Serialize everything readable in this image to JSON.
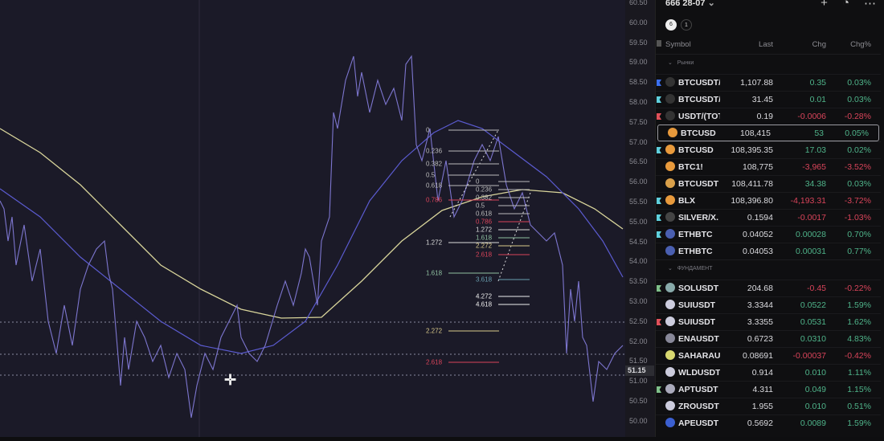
{
  "chart": {
    "price_axis": [
      "60.50",
      "60.00",
      "59.50",
      "59.00",
      "58.50",
      "58.00",
      "57.50",
      "57.00",
      "56.50",
      "56.00",
      "55.50",
      "55.00",
      "54.50",
      "54.00",
      "53.50",
      "53.00",
      "52.50",
      "52.00",
      "51.50",
      "51.00",
      "50.50",
      "50.00"
    ],
    "current_price": "51.15",
    "fib_labels_left": [
      "0",
      "0.236",
      "0.382",
      "0.5",
      "0.618",
      "0.786",
      "1.272",
      "1.618",
      "2.272",
      "2.618"
    ],
    "fib_labels_right": [
      "0",
      "0.236",
      "0.382",
      "0.5",
      "0.618",
      "0.786",
      "1.272",
      "1.618",
      "2.272",
      "2.618",
      "3.618",
      "4.272",
      "4.618"
    ],
    "colors": {
      "price": "#7d76cf",
      "ma_fast": "#5b5bd0",
      "ma_slow": "#d9d59b",
      "background": "#1b1a28"
    }
  },
  "watchlist": {
    "title": "666 28-07",
    "tabs": [
      "6",
      "1"
    ],
    "columns": {
      "symbol": "Symbol",
      "last": "Last",
      "chg": "Chg",
      "pct": "Chg%"
    },
    "sections": [
      {
        "name": "Рынки",
        "rows": [
          {
            "symbol": "BTCUSDT/I",
            "last": "1,107.88",
            "chg": "0.35",
            "pct": "0.03%",
            "dir": "pos",
            "flag": "#3b6ff0",
            "coin": "#333"
          },
          {
            "symbol": "BTCUSDT/:",
            "last": "31.45",
            "chg": "0.01",
            "pct": "0.03%",
            "dir": "pos",
            "flag": "#5fd0dd",
            "coin": "#333"
          },
          {
            "symbol": "USDT/(TOT",
            "last": "0.19",
            "chg": "-0.0006",
            "pct": "-0.28%",
            "dir": "neg",
            "flag": "#e0505a",
            "coin": "#333"
          },
          {
            "symbol": "BTCUSD",
            "last": "108,415",
            "chg": "53",
            "pct": "0.05%",
            "dir": "pos",
            "flag": "",
            "coin": "#e89a3c",
            "selected": true
          },
          {
            "symbol": "BTCUSD",
            "last": "108,395.35",
            "chg": "17.03",
            "pct": "0.02%",
            "dir": "pos",
            "flag": "#5fd0dd",
            "coin": "#e89a3c"
          },
          {
            "symbol": "BTC1!",
            "last": "108,775",
            "chg": "-3,965",
            "pct": "-3.52%",
            "dir": "neg",
            "flag": "",
            "coin": "#e89a3c"
          },
          {
            "symbol": "BTCUSDT",
            "last": "108,411.78",
            "chg": "34.38",
            "pct": "0.03%",
            "dir": "pos",
            "flag": "",
            "coin": "#d9a04a"
          },
          {
            "symbol": "BLX",
            "last": "108,396.80",
            "chg": "-4,193.31",
            "pct": "-3.72%",
            "dir": "neg",
            "flag": "#5fd0dd",
            "coin": "#e89a3c"
          },
          {
            "symbol": "SILVER/X.",
            "last": "0.1594",
            "chg": "-0.0017",
            "pct": "-1.03%",
            "dir": "neg",
            "flag": "#5fd0dd",
            "coin": "#444"
          },
          {
            "symbol": "ETHBTC",
            "last": "0.04052",
            "chg": "0.00028",
            "pct": "0.70%",
            "dir": "pos",
            "flag": "#5fd0dd",
            "coin": "#4a5fb0"
          },
          {
            "symbol": "ETHBTC",
            "last": "0.04053",
            "chg": "0.00031",
            "pct": "0.77%",
            "dir": "pos",
            "flag": "",
            "coin": "#4a5fb0"
          }
        ]
      },
      {
        "name": "ФУНДАМЕНТ",
        "rows": [
          {
            "symbol": "SOLUSDT",
            "last": "204.68",
            "chg": "-0.45",
            "pct": "-0.22%",
            "dir": "neg",
            "flag": "#7fc08a",
            "coin": "#8aa"
          },
          {
            "symbol": "SUIUSDT",
            "last": "3.3344",
            "chg": "0.0522",
            "pct": "1.59%",
            "dir": "pos",
            "flag": "",
            "coin": "#ccd"
          },
          {
            "symbol": "SUIUSDT",
            "last": "3.3355",
            "chg": "0.0531",
            "pct": "1.62%",
            "dir": "pos",
            "flag": "#e0505a",
            "coin": "#ccd"
          },
          {
            "symbol": "ENAUSDT",
            "last": "0.6723",
            "chg": "0.0310",
            "pct": "4.83%",
            "dir": "pos",
            "flag": "",
            "coin": "#889"
          },
          {
            "symbol": "SAHARAUS",
            "last": "0.08691",
            "chg": "-0.00037",
            "pct": "-0.42%",
            "dir": "neg",
            "flag": "",
            "coin": "#d8d870"
          },
          {
            "symbol": "WLDUSDT",
            "last": "0.914",
            "chg": "0.010",
            "pct": "1.11%",
            "dir": "pos",
            "flag": "",
            "coin": "#ccd"
          },
          {
            "symbol": "APTUSDT",
            "last": "4.311",
            "chg": "0.049",
            "pct": "1.15%",
            "dir": "pos",
            "flag": "#7fc08a",
            "coin": "#aab"
          },
          {
            "symbol": "ZROUSDT",
            "last": "1.955",
            "chg": "0.010",
            "pct": "0.51%",
            "dir": "pos",
            "flag": "",
            "coin": "#ccd"
          },
          {
            "symbol": "APEUSDT",
            "last": "0.5692",
            "chg": "0.0089",
            "pct": "1.59%",
            "dir": "pos",
            "flag": "",
            "coin": "#3b5fd0"
          }
        ]
      }
    ]
  }
}
